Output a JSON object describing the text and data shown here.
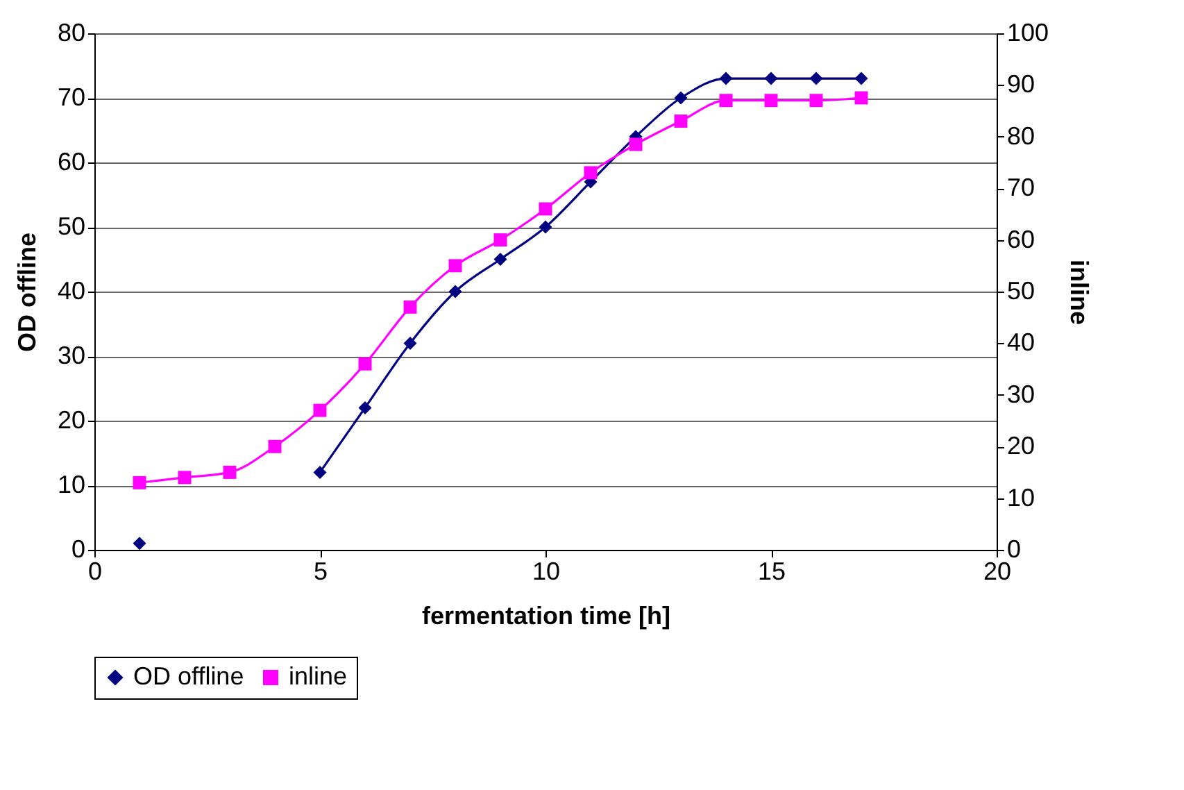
{
  "chart_data": {
    "type": "line",
    "xlabel": "fermentation time [h]",
    "ylabel": "OD offline",
    "y2label": "inline",
    "xlim": [
      0,
      20
    ],
    "xticks": [
      0,
      5,
      10,
      15,
      20
    ],
    "ylim": [
      0,
      80
    ],
    "yticks": [
      0,
      10,
      20,
      30,
      40,
      50,
      60,
      70,
      80
    ],
    "y2lim": [
      0,
      100
    ],
    "y2ticks": [
      0,
      10,
      20,
      30,
      40,
      50,
      60,
      70,
      80,
      90,
      100
    ],
    "grid": "y",
    "legend": "bottom",
    "line_style": "solid",
    "series": [
      {
        "name": "OD offline",
        "color": "#000080",
        "marker": "diamond",
        "x": [
          1,
          2,
          3,
          4,
          5,
          6,
          7,
          8,
          9,
          10,
          11,
          12,
          13,
          14,
          15,
          16,
          17
        ],
        "values": [
          1,
          null,
          null,
          null,
          12,
          22,
          32,
          40,
          45,
          50,
          57,
          64,
          70,
          73,
          73,
          73,
          73
        ]
      },
      {
        "name": "inline",
        "color": "#ff00ff",
        "marker": "square",
        "axis": "y2",
        "x": [
          1,
          2,
          3,
          4,
          5,
          6,
          7,
          8,
          9,
          10,
          11,
          12,
          13,
          14,
          15,
          16,
          17
        ],
        "values": [
          13,
          14,
          15,
          20,
          27,
          36,
          47,
          55,
          60,
          66,
          73,
          78.5,
          83,
          87,
          87,
          87,
          87.5
        ]
      }
    ]
  }
}
